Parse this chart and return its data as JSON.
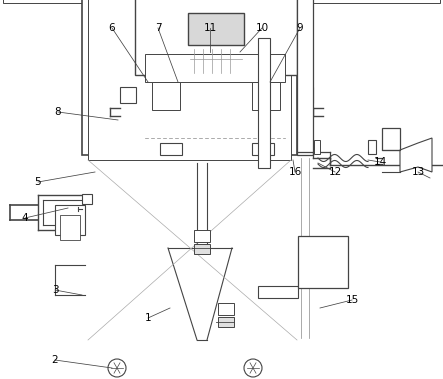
{
  "bg_color": "#ffffff",
  "line_color": "#444444",
  "label_color": "#000000",
  "figsize": [
    4.43,
    3.79
  ],
  "dpi": 100,
  "labels_info": [
    [
      1,
      148,
      318,
      170,
      308
    ],
    [
      2,
      55,
      360,
      112,
      368
    ],
    [
      3,
      55,
      290,
      82,
      295
    ],
    [
      4,
      25,
      218,
      68,
      208
    ],
    [
      5,
      38,
      182,
      95,
      172
    ],
    [
      6,
      112,
      28,
      148,
      82
    ],
    [
      7,
      158,
      28,
      178,
      82
    ],
    [
      8,
      58,
      112,
      118,
      120
    ],
    [
      9,
      300,
      28,
      270,
      82
    ],
    [
      10,
      262,
      28,
      240,
      52
    ],
    [
      11,
      210,
      28,
      210,
      52
    ],
    [
      12,
      335,
      172,
      318,
      163
    ],
    [
      13,
      418,
      172,
      430,
      178
    ],
    [
      14,
      380,
      162,
      368,
      160
    ],
    [
      15,
      352,
      300,
      320,
      308
    ],
    [
      16,
      295,
      172,
      293,
      160
    ]
  ]
}
